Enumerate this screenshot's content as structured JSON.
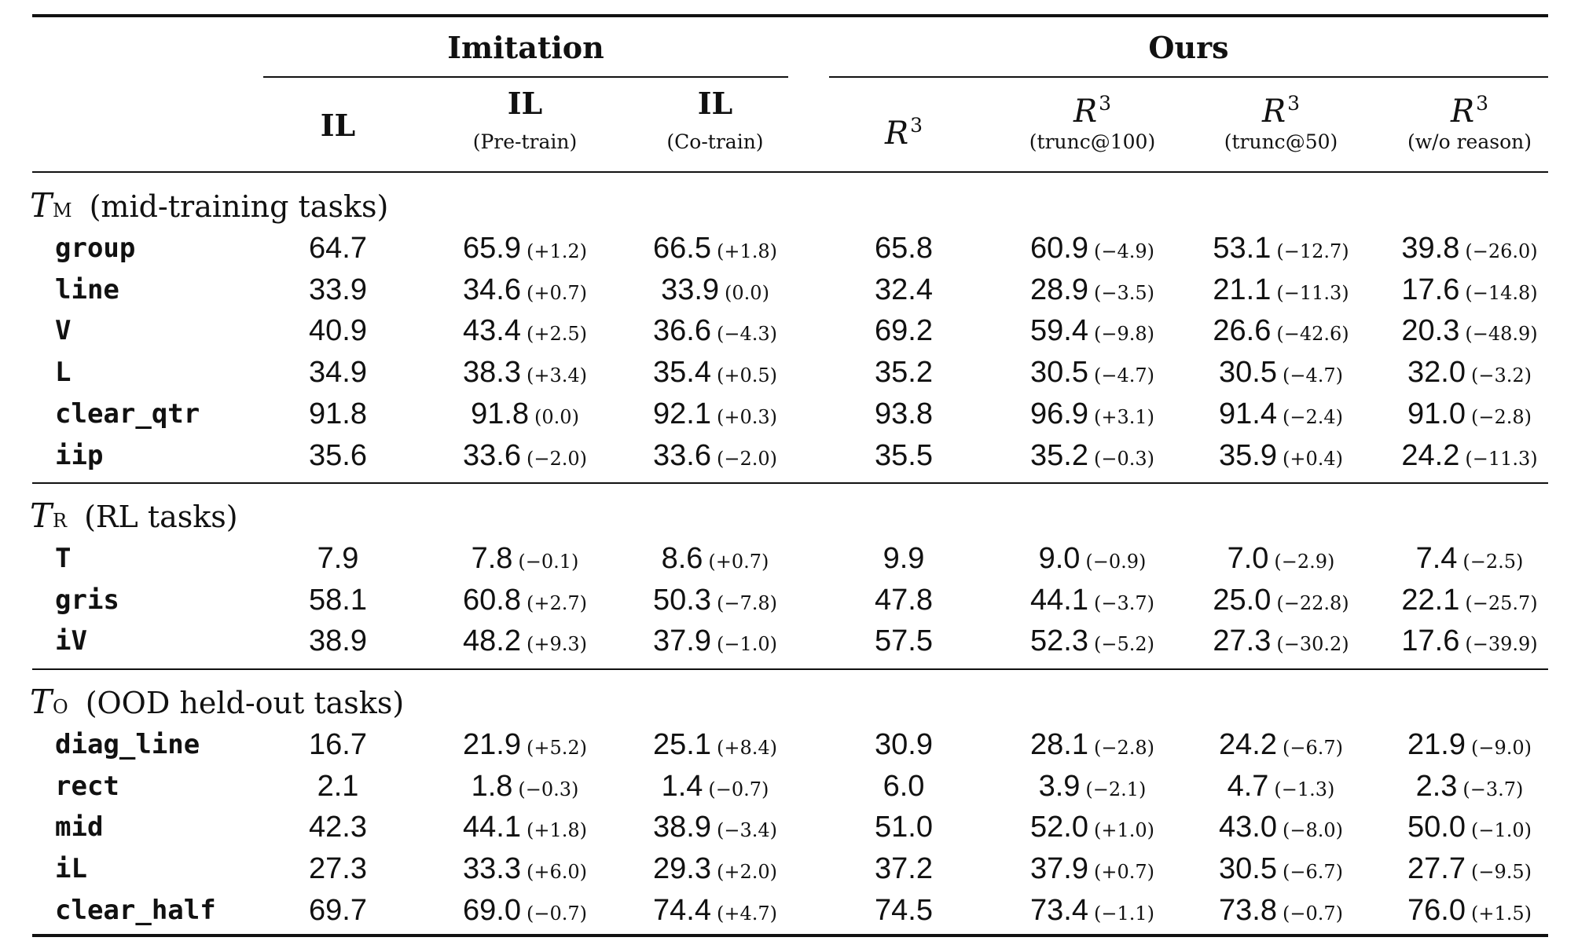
{
  "chart_data": {
    "type": "table",
    "column_groups": [
      {
        "label": "Imitation",
        "span": 3
      },
      {
        "label": "Ours",
        "span": 4
      }
    ],
    "columns": [
      {
        "label": "IL",
        "sub": "",
        "style": "bold"
      },
      {
        "label": "IL",
        "sub": "(Pre-train)",
        "style": "bold"
      },
      {
        "label": "IL",
        "sub": "(Co-train)",
        "style": "bold"
      },
      {
        "label": "R",
        "sup": "3",
        "sub": "",
        "style": "script"
      },
      {
        "label": "R",
        "sup": "3",
        "sub": "(trunc@100)",
        "style": "script"
      },
      {
        "label": "R",
        "sup": "3",
        "sub": "(trunc@50)",
        "style": "script"
      },
      {
        "label": "R",
        "sup": "3",
        "sub": "(w/o reason)",
        "style": "script"
      }
    ],
    "sections": [
      {
        "symbol": "T",
        "subscript": "M",
        "title": "(mid-training tasks)",
        "rows": [
          {
            "task": "group",
            "cells": [
              {
                "v": "64.7",
                "d": ""
              },
              {
                "v": "65.9",
                "d": "(+1.2)"
              },
              {
                "v": "66.5",
                "d": "(+1.8)"
              },
              {
                "v": "65.8",
                "d": ""
              },
              {
                "v": "60.9",
                "d": "(−4.9)"
              },
              {
                "v": "53.1",
                "d": "(−12.7)"
              },
              {
                "v": "39.8",
                "d": "(−26.0)"
              }
            ]
          },
          {
            "task": "line",
            "cells": [
              {
                "v": "33.9",
                "d": ""
              },
              {
                "v": "34.6",
                "d": "(+0.7)"
              },
              {
                "v": "33.9",
                "d": "(0.0)"
              },
              {
                "v": "32.4",
                "d": ""
              },
              {
                "v": "28.9",
                "d": "(−3.5)"
              },
              {
                "v": "21.1",
                "d": "(−11.3)"
              },
              {
                "v": "17.6",
                "d": "(−14.8)"
              }
            ]
          },
          {
            "task": "V",
            "cells": [
              {
                "v": "40.9",
                "d": ""
              },
              {
                "v": "43.4",
                "d": "(+2.5)"
              },
              {
                "v": "36.6",
                "d": "(−4.3)"
              },
              {
                "v": "69.2",
                "d": ""
              },
              {
                "v": "59.4",
                "d": "(−9.8)"
              },
              {
                "v": "26.6",
                "d": "(−42.6)"
              },
              {
                "v": "20.3",
                "d": "(−48.9)"
              }
            ]
          },
          {
            "task": "L",
            "cells": [
              {
                "v": "34.9",
                "d": ""
              },
              {
                "v": "38.3",
                "d": "(+3.4)"
              },
              {
                "v": "35.4",
                "d": "(+0.5)"
              },
              {
                "v": "35.2",
                "d": ""
              },
              {
                "v": "30.5",
                "d": "(−4.7)"
              },
              {
                "v": "30.5",
                "d": "(−4.7)"
              },
              {
                "v": "32.0",
                "d": "(−3.2)"
              }
            ]
          },
          {
            "task": "clear_qtr",
            "cells": [
              {
                "v": "91.8",
                "d": ""
              },
              {
                "v": "91.8",
                "d": "(0.0)"
              },
              {
                "v": "92.1",
                "d": "(+0.3)"
              },
              {
                "v": "93.8",
                "d": ""
              },
              {
                "v": "96.9",
                "d": "(+3.1)"
              },
              {
                "v": "91.4",
                "d": "(−2.4)"
              },
              {
                "v": "91.0",
                "d": "(−2.8)"
              }
            ]
          },
          {
            "task": "iip",
            "cells": [
              {
                "v": "35.6",
                "d": ""
              },
              {
                "v": "33.6",
                "d": "(−2.0)"
              },
              {
                "v": "33.6",
                "d": "(−2.0)"
              },
              {
                "v": "35.5",
                "d": ""
              },
              {
                "v": "35.2",
                "d": "(−0.3)"
              },
              {
                "v": "35.9",
                "d": "(+0.4)"
              },
              {
                "v": "24.2",
                "d": "(−11.3)"
              }
            ]
          }
        ]
      },
      {
        "symbol": "T",
        "subscript": "R",
        "title": "(RL tasks)",
        "rows": [
          {
            "task": "T",
            "cells": [
              {
                "v": "7.9",
                "d": ""
              },
              {
                "v": "7.8",
                "d": "(−0.1)"
              },
              {
                "v": "8.6",
                "d": "(+0.7)"
              },
              {
                "v": "9.9",
                "d": ""
              },
              {
                "v": "9.0",
                "d": "(−0.9)"
              },
              {
                "v": "7.0",
                "d": "(−2.9)"
              },
              {
                "v": "7.4",
                "d": "(−2.5)"
              }
            ]
          },
          {
            "task": "gris",
            "cells": [
              {
                "v": "58.1",
                "d": ""
              },
              {
                "v": "60.8",
                "d": "(+2.7)"
              },
              {
                "v": "50.3",
                "d": "(−7.8)"
              },
              {
                "v": "47.8",
                "d": ""
              },
              {
                "v": "44.1",
                "d": "(−3.7)"
              },
              {
                "v": "25.0",
                "d": "(−22.8)"
              },
              {
                "v": "22.1",
                "d": "(−25.7)"
              }
            ]
          },
          {
            "task": "iV",
            "cells": [
              {
                "v": "38.9",
                "d": ""
              },
              {
                "v": "48.2",
                "d": "(+9.3)"
              },
              {
                "v": "37.9",
                "d": "(−1.0)"
              },
              {
                "v": "57.5",
                "d": ""
              },
              {
                "v": "52.3",
                "d": "(−5.2)"
              },
              {
                "v": "27.3",
                "d": "(−30.2)"
              },
              {
                "v": "17.6",
                "d": "(−39.9)"
              }
            ]
          }
        ]
      },
      {
        "symbol": "T",
        "subscript": "O",
        "title": "(OOD held-out tasks)",
        "rows": [
          {
            "task": "diag_line",
            "cells": [
              {
                "v": "16.7",
                "d": ""
              },
              {
                "v": "21.9",
                "d": "(+5.2)"
              },
              {
                "v": "25.1",
                "d": "(+8.4)"
              },
              {
                "v": "30.9",
                "d": ""
              },
              {
                "v": "28.1",
                "d": "(−2.8)"
              },
              {
                "v": "24.2",
                "d": "(−6.7)"
              },
              {
                "v": "21.9",
                "d": "(−9.0)"
              }
            ]
          },
          {
            "task": "rect",
            "cells": [
              {
                "v": "2.1",
                "d": ""
              },
              {
                "v": "1.8",
                "d": "(−0.3)"
              },
              {
                "v": "1.4",
                "d": "(−0.7)"
              },
              {
                "v": "6.0",
                "d": ""
              },
              {
                "v": "3.9",
                "d": "(−2.1)"
              },
              {
                "v": "4.7",
                "d": "(−1.3)"
              },
              {
                "v": "2.3",
                "d": "(−3.7)"
              }
            ]
          },
          {
            "task": "mid",
            "cells": [
              {
                "v": "42.3",
                "d": ""
              },
              {
                "v": "44.1",
                "d": "(+1.8)"
              },
              {
                "v": "38.9",
                "d": "(−3.4)"
              },
              {
                "v": "51.0",
                "d": ""
              },
              {
                "v": "52.0",
                "d": "(+1.0)"
              },
              {
                "v": "43.0",
                "d": "(−8.0)"
              },
              {
                "v": "50.0",
                "d": "(−1.0)"
              }
            ]
          },
          {
            "task": "iL",
            "cells": [
              {
                "v": "27.3",
                "d": ""
              },
              {
                "v": "33.3",
                "d": "(+6.0)"
              },
              {
                "v": "29.3",
                "d": "(+2.0)"
              },
              {
                "v": "37.2",
                "d": ""
              },
              {
                "v": "37.9",
                "d": "(+0.7)"
              },
              {
                "v": "30.5",
                "d": "(−6.7)"
              },
              {
                "v": "27.7",
                "d": "(−9.5)"
              }
            ]
          },
          {
            "task": "clear_half",
            "cells": [
              {
                "v": "69.7",
                "d": ""
              },
              {
                "v": "69.0",
                "d": "(−0.7)"
              },
              {
                "v": "74.4",
                "d": "(+4.7)"
              },
              {
                "v": "74.5",
                "d": ""
              },
              {
                "v": "73.4",
                "d": "(−1.1)"
              },
              {
                "v": "73.8",
                "d": "(−0.7)"
              },
              {
                "v": "76.0",
                "d": "(+1.5)"
              }
            ]
          }
        ]
      }
    ]
  }
}
